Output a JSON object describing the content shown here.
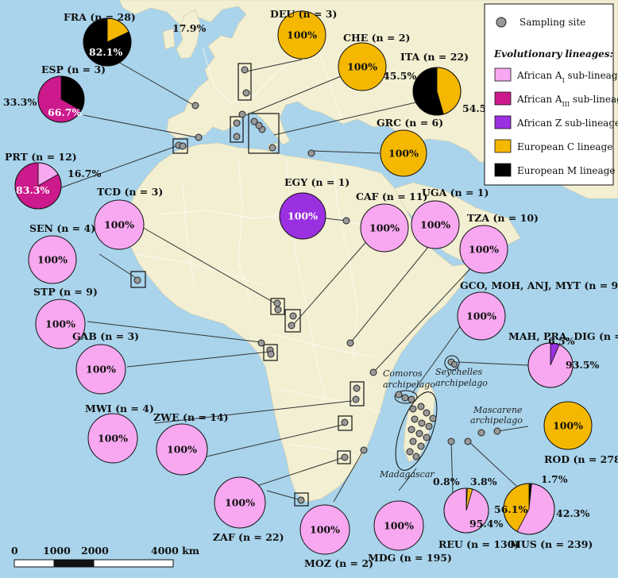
{
  "colors": {
    "african_a1": "#f7a8f0",
    "african_a3": "#cc1a8c",
    "african_z": "#9a30e0",
    "european_c": "#f5b800",
    "european_m": "#000000",
    "sea": "#a9d4ec",
    "land": "#f3efd2",
    "site": "#999999"
  },
  "legend": {
    "site_label": "Sampling site",
    "heading": "Evolutionary lineages:",
    "items": [
      {
        "key": "african_a1",
        "pre": "African A",
        "sub": "I",
        "post": " sub-lineage"
      },
      {
        "key": "african_a3",
        "pre": "African A",
        "sub": "III",
        "post": " sub-lineage"
      },
      {
        "key": "african_z",
        "pre": "African Z sub-lineage",
        "sub": "",
        "post": ""
      },
      {
        "key": "european_c",
        "pre": "European C lineage",
        "sub": "",
        "post": ""
      },
      {
        "key": "european_m",
        "pre": "European M lineage",
        "sub": "",
        "post": ""
      }
    ]
  },
  "pies": [
    {
      "id": "fra",
      "label": "FRA (n = 28)",
      "slices": [
        {
          "lineage": "european_c",
          "value": 17.9,
          "text": "17.9%"
        },
        {
          "lineage": "european_m",
          "value": 82.1,
          "text": "82.1%"
        }
      ]
    },
    {
      "id": "deu",
      "label": "DEU (n = 3)",
      "slices": [
        {
          "lineage": "european_c",
          "value": 100,
          "text": "100%"
        }
      ]
    },
    {
      "id": "che",
      "label": "CHE (n = 2)",
      "slices": [
        {
          "lineage": "european_c",
          "value": 100,
          "text": "100%"
        }
      ]
    },
    {
      "id": "ita",
      "label": "ITA (n = 22)",
      "slices": [
        {
          "lineage": "european_c",
          "value": 45.5,
          "text": "45.5%"
        },
        {
          "lineage": "european_m",
          "value": 54.5,
          "text": "54.5%"
        }
      ]
    },
    {
      "id": "esp",
      "label": "ESP (n = 3)",
      "slices": [
        {
          "lineage": "european_m",
          "value": 33.3,
          "text": "33.3%"
        },
        {
          "lineage": "african_a3",
          "value": 66.7,
          "text": "66.7%"
        }
      ]
    },
    {
      "id": "grc",
      "label": "GRC (n = 6)",
      "slices": [
        {
          "lineage": "european_c",
          "value": 100,
          "text": "100%"
        }
      ]
    },
    {
      "id": "prt",
      "label": "PRT (n = 12)",
      "slices": [
        {
          "lineage": "african_a1",
          "value": 16.7,
          "text": "16.7%"
        },
        {
          "lineage": "african_a3",
          "value": 83.3,
          "text": "83.3%"
        }
      ]
    },
    {
      "id": "egy",
      "label": "EGY (n = 1)",
      "slices": [
        {
          "lineage": "african_z",
          "value": 100,
          "text": "100%"
        }
      ]
    },
    {
      "id": "tcd",
      "label": "TCD (n = 3)",
      "slices": [
        {
          "lineage": "african_a1",
          "value": 100,
          "text": "100%"
        }
      ]
    },
    {
      "id": "caf",
      "label": "CAF (n = 11)",
      "slices": [
        {
          "lineage": "african_a1",
          "value": 100,
          "text": "100%"
        }
      ]
    },
    {
      "id": "uga",
      "label": "UGA (n = 1)",
      "slices": [
        {
          "lineage": "african_a1",
          "value": 100,
          "text": "100%"
        }
      ]
    },
    {
      "id": "tza",
      "label": "TZA (n = 10)",
      "slices": [
        {
          "lineage": "african_a1",
          "value": 100,
          "text": "100%"
        }
      ]
    },
    {
      "id": "sen",
      "label": "SEN (n = 4)",
      "slices": [
        {
          "lineage": "african_a1",
          "value": 100,
          "text": "100%"
        }
      ]
    },
    {
      "id": "stp",
      "label": "STP (n = 9)",
      "slices": [
        {
          "lineage": "african_a1",
          "value": 100,
          "text": "100%"
        }
      ]
    },
    {
      "id": "gco",
      "label": "GCO, MOH, ANJ, MYT (n = 90)",
      "slices": [
        {
          "lineage": "african_a1",
          "value": 100,
          "text": "100%"
        }
      ]
    },
    {
      "id": "mah",
      "label": "MAH, PRA, DIG (n = 123)",
      "slices": [
        {
          "lineage": "african_z",
          "value": 6.5,
          "text": "6.5%"
        },
        {
          "lineage": "african_a1",
          "value": 93.5,
          "text": "93.5%"
        }
      ]
    },
    {
      "id": "gab",
      "label": "GAB (n = 3)",
      "slices": [
        {
          "lineage": "african_a1",
          "value": 100,
          "text": "100%"
        }
      ]
    },
    {
      "id": "mwi",
      "label": "MWI (n = 4)",
      "slices": [
        {
          "lineage": "african_a1",
          "value": 100,
          "text": "100%"
        }
      ]
    },
    {
      "id": "zwe",
      "label": "ZWE (n = 14)",
      "slices": [
        {
          "lineage": "african_a1",
          "value": 100,
          "text": "100%"
        }
      ]
    },
    {
      "id": "rod",
      "label": "ROD (n = 278)",
      "slices": [
        {
          "lineage": "european_c",
          "value": 100,
          "text": "100%"
        }
      ]
    },
    {
      "id": "zaf",
      "label": "ZAF (n = 22)",
      "slices": [
        {
          "lineage": "african_a1",
          "value": 100,
          "text": "100%"
        }
      ]
    },
    {
      "id": "moz",
      "label": "MOZ (n = 2)",
      "slices": [
        {
          "lineage": "african_a1",
          "value": 100,
          "text": "100%"
        }
      ]
    },
    {
      "id": "mdg",
      "label": "MDG (n = 195)",
      "slices": [
        {
          "lineage": "african_a1",
          "value": 100,
          "text": "100%"
        }
      ]
    },
    {
      "id": "reu",
      "label": "REU (n = 130)",
      "slices": [
        {
          "lineage": "african_z",
          "value": 0.8,
          "text": "0.8%"
        },
        {
          "lineage": "european_c",
          "value": 3.8,
          "text": "3.8%"
        },
        {
          "lineage": "african_a1",
          "value": 95.4,
          "text": "95.4%"
        }
      ]
    },
    {
      "id": "mus",
      "label": "MUS (n = 239)",
      "slices": [
        {
          "lineage": "european_m",
          "value": 1.7,
          "text": "1.7%"
        },
        {
          "lineage": "african_a1",
          "value": 56.1,
          "text": "56.1%"
        },
        {
          "lineage": "european_c",
          "value": 42.3,
          "text": "42.3%"
        }
      ]
    }
  ],
  "places": {
    "comoros": "Comoros archipelago",
    "seychelles": "Seychelles archipelago",
    "mascarene": "Mascarene archipelago",
    "madagascar": "Madagascar"
  },
  "scale": {
    "t0": "0",
    "t1": "1000",
    "t2": "2000",
    "t3": "4000 km"
  }
}
